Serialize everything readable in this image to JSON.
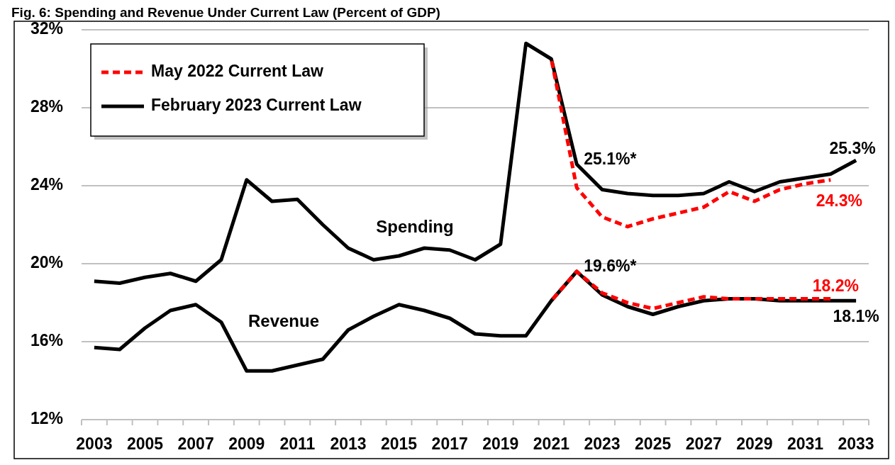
{
  "chart_data": {
    "type": "line",
    "title": "Fig. 6: Spending and Revenue Under Current Law (Percent of GDP)",
    "categories": [
      "2003",
      null,
      "2005",
      null,
      "2007",
      null,
      "2009",
      null,
      "2011",
      null,
      "2013",
      null,
      "2015",
      null,
      "2017",
      null,
      "2019",
      null,
      "2021",
      null,
      "2023",
      null,
      "2025",
      null,
      "2027",
      null,
      "2029",
      null,
      "2031",
      null,
      "2033"
    ],
    "ylim": [
      12,
      32
    ],
    "yticks": [
      {
        "value": 12,
        "label": "12%"
      },
      {
        "value": 16,
        "label": "16%"
      },
      {
        "value": 20,
        "label": "20%"
      },
      {
        "value": 24,
        "label": "24%"
      },
      {
        "value": 28,
        "label": "28%"
      },
      {
        "value": 32,
        "label": "32%"
      }
    ],
    "grid": "y",
    "legend": "top left",
    "series": [
      {
        "name": "May 2022 Current Law",
        "color": "#ff0000",
        "line_style": "dashed",
        "values": [
          null,
          null,
          null,
          null,
          null,
          null,
          null,
          null,
          null,
          null,
          null,
          null,
          null,
          null,
          null,
          null,
          null,
          null,
          30.5,
          23.9,
          22.4,
          21.9,
          22.3,
          22.6,
          22.9,
          23.7,
          23.2,
          23.8,
          24.1,
          24.3,
          null
        ],
        "value_labels": [
          null,
          null,
          null,
          null,
          null,
          null,
          null,
          null,
          null,
          null,
          null,
          null,
          null,
          null,
          null,
          null,
          null,
          null,
          null,
          null,
          null,
          null,
          null,
          null,
          null,
          null,
          null,
          null,
          null,
          "24.3%",
          null
        ]
      },
      {
        "name": "February 2023 Current Law",
        "color": "#000000",
        "line_style": "solid",
        "values": [
          19.1,
          19.0,
          19.3,
          19.5,
          19.1,
          20.2,
          24.3,
          23.2,
          23.3,
          22.0,
          20.8,
          20.2,
          20.4,
          20.8,
          20.7,
          20.2,
          21.0,
          31.3,
          30.5,
          25.1,
          23.8,
          23.6,
          23.5,
          23.5,
          23.6,
          24.2,
          23.7,
          24.2,
          24.4,
          24.6,
          25.3
        ],
        "value_labels": [
          null,
          null,
          null,
          null,
          null,
          null,
          null,
          null,
          null,
          null,
          null,
          null,
          null,
          null,
          null,
          null,
          null,
          null,
          null,
          "25.1%*",
          null,
          null,
          null,
          null,
          null,
          null,
          null,
          null,
          null,
          null,
          "25.3%"
        ]
      },
      {
        "color": "#ff0000",
        "line_style": "dashed",
        "values": [
          null,
          null,
          null,
          null,
          null,
          null,
          null,
          null,
          null,
          null,
          null,
          null,
          null,
          null,
          null,
          null,
          null,
          null,
          18.1,
          19.6,
          18.5,
          18.0,
          17.7,
          18.0,
          18.3,
          18.2,
          18.2,
          18.2,
          18.2,
          18.2,
          null
        ],
        "value_labels": [
          null,
          null,
          null,
          null,
          null,
          null,
          null,
          null,
          null,
          null,
          null,
          null,
          null,
          null,
          null,
          null,
          null,
          null,
          null,
          null,
          null,
          null,
          null,
          null,
          null,
          null,
          null,
          null,
          null,
          "18.2%",
          null
        ]
      },
      {
        "color": "#000000",
        "line_style": "solid",
        "values": [
          15.7,
          15.6,
          16.7,
          17.6,
          17.9,
          17.0,
          14.5,
          14.5,
          14.8,
          15.1,
          16.6,
          17.3,
          17.9,
          17.6,
          17.2,
          16.4,
          16.3,
          16.3,
          18.1,
          19.6,
          18.4,
          17.8,
          17.4,
          17.8,
          18.1,
          18.2,
          18.2,
          18.1,
          18.1,
          18.1,
          18.1
        ],
        "value_labels": [
          null,
          null,
          null,
          null,
          null,
          null,
          null,
          null,
          null,
          null,
          null,
          null,
          null,
          null,
          null,
          null,
          null,
          null,
          null,
          "19.6%*",
          null,
          null,
          null,
          null,
          null,
          null,
          null,
          null,
          null,
          null,
          "18.1%"
        ]
      }
    ],
    "annotations": [
      "Spending",
      "Revenue"
    ]
  }
}
